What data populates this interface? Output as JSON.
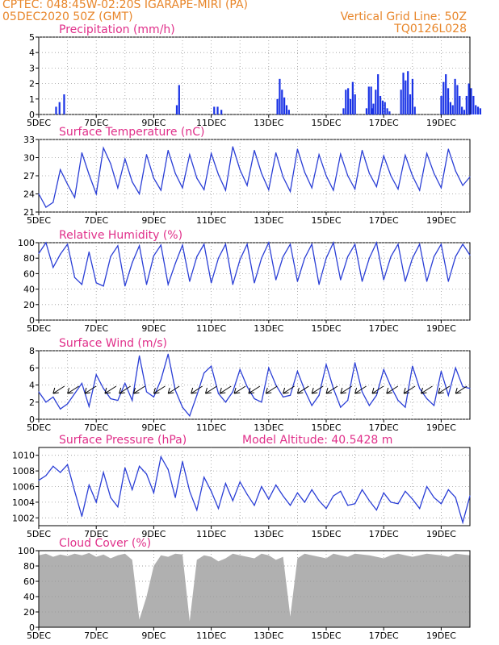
{
  "header": {
    "line1_left": "CPTEC:   048:45W-02:20S   IGARAPE-MIRI (PA)",
    "line2_left": "05DEC2020 50Z (GMT)",
    "line1_right": "Vertical Grid Line: 50Z",
    "line2_right": "TQ0126L028"
  },
  "colors": {
    "header_text": "#e8862a",
    "panel_title": "#e0308a",
    "series_line": "#2b3fd6",
    "precip_bar": "#1a33e6",
    "cloud_fill": "#b0b0b0",
    "grid": "#9a9a9a"
  },
  "x_axis": {
    "labels": [
      "5DEC",
      "7DEC",
      "9DEC",
      "11DEC",
      "13DEC",
      "15DEC",
      "17DEC",
      "19DEC"
    ],
    "start": "2020-12-05T00Z",
    "end": "2020-12-20T00Z",
    "grid": "vertical dotted line each day"
  },
  "chart_data": [
    {
      "type": "bar",
      "title": "Precipitation (mm/h)",
      "ylim": [
        0,
        5
      ],
      "yticks": [
        0,
        1,
        2,
        3,
        4,
        5
      ],
      "x_unit": "days since 5DEC",
      "x": [
        0.6,
        0.72,
        0.88,
        4.8,
        4.88,
        6.1,
        6.22,
        6.35,
        8.3,
        8.38,
        8.46,
        8.54,
        8.62,
        8.7,
        10.6,
        10.68,
        10.76,
        10.84,
        10.92,
        11.0,
        11.4,
        11.48,
        11.56,
        11.64,
        11.72,
        11.8,
        11.88,
        11.96,
        11.6,
        12.04,
        12.12,
        12.2,
        12.6,
        12.68,
        12.76,
        12.84,
        12.92,
        13.0,
        13.08,
        14.0,
        14.08,
        14.16,
        14.24,
        14.32,
        14.4,
        14.48,
        14.56,
        14.64,
        14.72,
        14.8,
        14.88,
        14.96,
        15.04,
        15.12,
        15.2,
        15.28,
        15.36
      ],
      "values": [
        0.5,
        0.8,
        1.3,
        0.6,
        1.9,
        0.5,
        0.5,
        0.3,
        1.0,
        2.3,
        1.6,
        1.1,
        0.6,
        0.3,
        0.4,
        1.6,
        1.7,
        1.0,
        2.1,
        1.3,
        0.4,
        1.8,
        1.8,
        0.7,
        1.6,
        2.6,
        1.2,
        0.9,
        0.4,
        0.8,
        0.4,
        0.2,
        1.6,
        2.7,
        2.2,
        2.8,
        1.3,
        2.3,
        0.5,
        1.2,
        2.1,
        2.6,
        1.7,
        0.8,
        0.6,
        2.3,
        1.9,
        1.2,
        0.5,
        0.3,
        1.2,
        2.0,
        1.7,
        1.2,
        0.6,
        0.5,
        0.4
      ]
    },
    {
      "type": "line",
      "title": "Surface Temperature (nC)",
      "ylim": [
        21,
        33
      ],
      "yticks": [
        21,
        24,
        27,
        30,
        33
      ],
      "x_unit": "days since 5DEC",
      "x": [
        0,
        0.25,
        0.5,
        0.75,
        1,
        1.25,
        1.5,
        1.75,
        2,
        2.25,
        2.5,
        2.75,
        3,
        3.25,
        3.5,
        3.75,
        4,
        4.25,
        4.5,
        4.75,
        5,
        5.25,
        5.5,
        5.75,
        6,
        6.25,
        6.5,
        6.75,
        7,
        7.25,
        7.5,
        7.75,
        8,
        8.25,
        8.5,
        8.75,
        9,
        9.25,
        9.5,
        9.75,
        10,
        10.25,
        10.5,
        10.75,
        11,
        11.25,
        11.5,
        11.75,
        12,
        12.25,
        12.5,
        12.75,
        13,
        13.25,
        13.5,
        13.75,
        14,
        14.25,
        14.5,
        14.75,
        15
      ],
      "values": [
        24.0,
        21.8,
        22.6,
        28.0,
        25.6,
        23.4,
        30.8,
        27.2,
        24.0,
        31.6,
        29.0,
        25.0,
        29.8,
        26.0,
        24.0,
        30.5,
        26.6,
        24.6,
        31.2,
        27.4,
        25.0,
        30.5,
        26.6,
        24.7,
        30.7,
        27.2,
        24.6,
        31.8,
        28.0,
        25.4,
        31.2,
        27.4,
        24.7,
        30.8,
        26.8,
        24.4,
        31.4,
        27.6,
        25.0,
        30.5,
        27.0,
        24.6,
        30.6,
        27.0,
        24.8,
        31.2,
        27.4,
        25.2,
        30.3,
        27.0,
        24.8,
        30.4,
        27.0,
        24.6,
        30.7,
        27.4,
        25.0,
        31.4,
        27.8,
        25.4,
        26.8
      ]
    },
    {
      "type": "line",
      "title": "Relative Humidity (%)",
      "ylim": [
        0,
        100
      ],
      "yticks": [
        0,
        20,
        40,
        60,
        80,
        100
      ],
      "x_unit": "days since 5DEC",
      "x": [
        0,
        0.25,
        0.5,
        0.75,
        1,
        1.25,
        1.5,
        1.75,
        2,
        2.25,
        2.5,
        2.75,
        3,
        3.25,
        3.5,
        3.75,
        4,
        4.25,
        4.5,
        4.75,
        5,
        5.25,
        5.5,
        5.75,
        6,
        6.25,
        6.5,
        6.75,
        7,
        7.25,
        7.5,
        7.75,
        8,
        8.25,
        8.5,
        8.75,
        9,
        9.25,
        9.5,
        9.75,
        10,
        10.25,
        10.5,
        10.75,
        11,
        11.25,
        11.5,
        11.75,
        12,
        12.25,
        12.5,
        12.75,
        13,
        13.25,
        13.5,
        13.75,
        14,
        14.25,
        14.5,
        14.75,
        15
      ],
      "values": [
        86,
        100,
        68,
        85,
        98,
        55,
        46,
        88,
        48,
        44,
        82,
        96,
        44,
        74,
        96,
        46,
        83,
        97,
        46,
        73,
        97,
        50,
        82,
        98,
        48,
        80,
        98,
        46,
        78,
        98,
        48,
        80,
        100,
        52,
        82,
        98,
        50,
        80,
        98,
        46,
        80,
        100,
        52,
        82,
        98,
        50,
        80,
        100,
        52,
        82,
        98,
        50,
        80,
        98,
        50,
        82,
        98,
        50,
        82,
        98,
        84
      ]
    },
    {
      "type": "line",
      "title": "Surface Wind (m/s)",
      "ylim": [
        0,
        8
      ],
      "yticks": [
        0,
        2,
        4,
        6,
        8
      ],
      "x_unit": "days since 5DEC",
      "x": [
        0,
        0.25,
        0.5,
        0.75,
        1,
        1.25,
        1.5,
        1.75,
        2,
        2.25,
        2.5,
        2.75,
        3,
        3.25,
        3.5,
        3.75,
        4,
        4.25,
        4.5,
        4.75,
        5,
        5.25,
        5.5,
        5.75,
        6,
        6.25,
        6.5,
        6.75,
        7,
        7.25,
        7.5,
        7.75,
        8,
        8.25,
        8.5,
        8.75,
        9,
        9.25,
        9.5,
        9.75,
        10,
        10.25,
        10.5,
        10.75,
        11,
        11.25,
        11.5,
        11.75,
        12,
        12.25,
        12.5,
        12.75,
        13,
        13.25,
        13.5,
        13.75,
        14,
        14.25,
        14.5,
        14.75,
        15
      ],
      "values": [
        3.2,
        2.0,
        2.6,
        1.2,
        1.8,
        3.0,
        4.2,
        1.5,
        5.2,
        3.6,
        2.4,
        2.2,
        4.2,
        2.2,
        7.4,
        3.2,
        2.6,
        4.6,
        7.6,
        3.4,
        1.4,
        0.4,
        2.8,
        5.4,
        6.2,
        3.0,
        2.0,
        3.2,
        5.8,
        3.8,
        2.4,
        2.0,
        6.0,
        4.0,
        2.6,
        2.8,
        5.6,
        3.4,
        1.6,
        2.8,
        6.4,
        3.6,
        1.4,
        2.2,
        6.6,
        3.2,
        1.6,
        2.8,
        5.8,
        3.8,
        2.2,
        1.4,
        6.2,
        3.6,
        2.4,
        1.6,
        5.6,
        2.8,
        6.0,
        3.8,
        3.6
      ],
      "wind_arrows_x": [
        0.5,
        1.0,
        1.6,
        2.3,
        2.8,
        3.3,
        4.0,
        4.5,
        5.3,
        5.8,
        6.3,
        6.8,
        7.3,
        7.9,
        8.5,
        9.0,
        9.5,
        10.0,
        10.5,
        11.0,
        11.6,
        12.1,
        12.7,
        13.3,
        13.9,
        14.5
      ]
    },
    {
      "type": "line",
      "title": "Surface Pressure (hPa)",
      "annotation": "Model Altitude: 40.5428 m",
      "ylim": [
        1001,
        1011
      ],
      "yticks": [
        1002,
        1004,
        1006,
        1008,
        1010
      ],
      "x_unit": "days since 5DEC",
      "x": [
        0,
        0.25,
        0.5,
        0.75,
        1,
        1.25,
        1.5,
        1.75,
        2,
        2.25,
        2.5,
        2.75,
        3,
        3.25,
        3.5,
        3.75,
        4,
        4.25,
        4.5,
        4.75,
        5,
        5.25,
        5.5,
        5.75,
        6,
        6.25,
        6.5,
        6.75,
        7,
        7.25,
        7.5,
        7.75,
        8,
        8.25,
        8.5,
        8.75,
        9,
        9.25,
        9.5,
        9.75,
        10,
        10.25,
        10.5,
        10.75,
        11,
        11.25,
        11.5,
        11.75,
        12,
        12.25,
        12.5,
        12.75,
        13,
        13.25,
        13.5,
        13.75,
        14,
        14.25,
        14.5,
        14.75,
        15
      ],
      "values": [
        1006.8,
        1007.4,
        1008.6,
        1007.8,
        1008.8,
        1005.4,
        1002.2,
        1006.2,
        1004.0,
        1007.8,
        1004.6,
        1003.4,
        1008.4,
        1005.6,
        1008.6,
        1007.6,
        1005.2,
        1009.8,
        1008.2,
        1004.6,
        1009.2,
        1005.4,
        1003.0,
        1007.2,
        1005.4,
        1003.2,
        1006.4,
        1004.2,
        1006.6,
        1005.0,
        1003.6,
        1006.0,
        1004.4,
        1006.2,
        1004.8,
        1003.6,
        1005.2,
        1004.0,
        1005.6,
        1004.2,
        1003.2,
        1004.8,
        1005.4,
        1003.6,
        1003.8,
        1005.6,
        1004.2,
        1003.0,
        1005.2,
        1004.0,
        1003.8,
        1005.4,
        1004.4,
        1003.2,
        1006.0,
        1004.6,
        1003.8,
        1005.6,
        1004.6,
        1001.4,
        1004.8
      ]
    },
    {
      "type": "area",
      "title": "Cloud Cover (%)",
      "ylim": [
        0,
        100
      ],
      "yticks": [
        0,
        20,
        40,
        60,
        80,
        100
      ],
      "x_unit": "days since 5DEC",
      "x": [
        0,
        0.25,
        0.5,
        0.75,
        1,
        1.25,
        1.5,
        1.75,
        2,
        2.25,
        2.5,
        2.75,
        3,
        3.25,
        3.5,
        3.75,
        4,
        4.25,
        4.5,
        4.75,
        5,
        5.25,
        5.5,
        5.75,
        6,
        6.25,
        6.5,
        6.75,
        7,
        7.25,
        7.5,
        7.75,
        8,
        8.25,
        8.5,
        8.75,
        9,
        9.25,
        9.5,
        9.75,
        10,
        10.25,
        10.5,
        10.75,
        11,
        11.25,
        11.5,
        11.75,
        12,
        12.25,
        12.5,
        12.75,
        13,
        13.25,
        13.5,
        13.75,
        14,
        14.25,
        14.5,
        14.75,
        15
      ],
      "values": [
        94,
        96,
        92,
        95,
        93,
        96,
        94,
        97,
        92,
        95,
        90,
        94,
        96,
        88,
        10,
        40,
        80,
        94,
        92,
        96,
        95,
        8,
        88,
        94,
        92,
        86,
        90,
        96,
        94,
        92,
        90,
        96,
        94,
        88,
        92,
        14,
        90,
        96,
        94,
        92,
        90,
        96,
        94,
        92,
        96,
        95,
        94,
        92,
        90,
        94,
        96,
        94,
        92,
        94,
        96,
        95,
        94,
        92,
        96,
        95,
        94
      ]
    }
  ]
}
